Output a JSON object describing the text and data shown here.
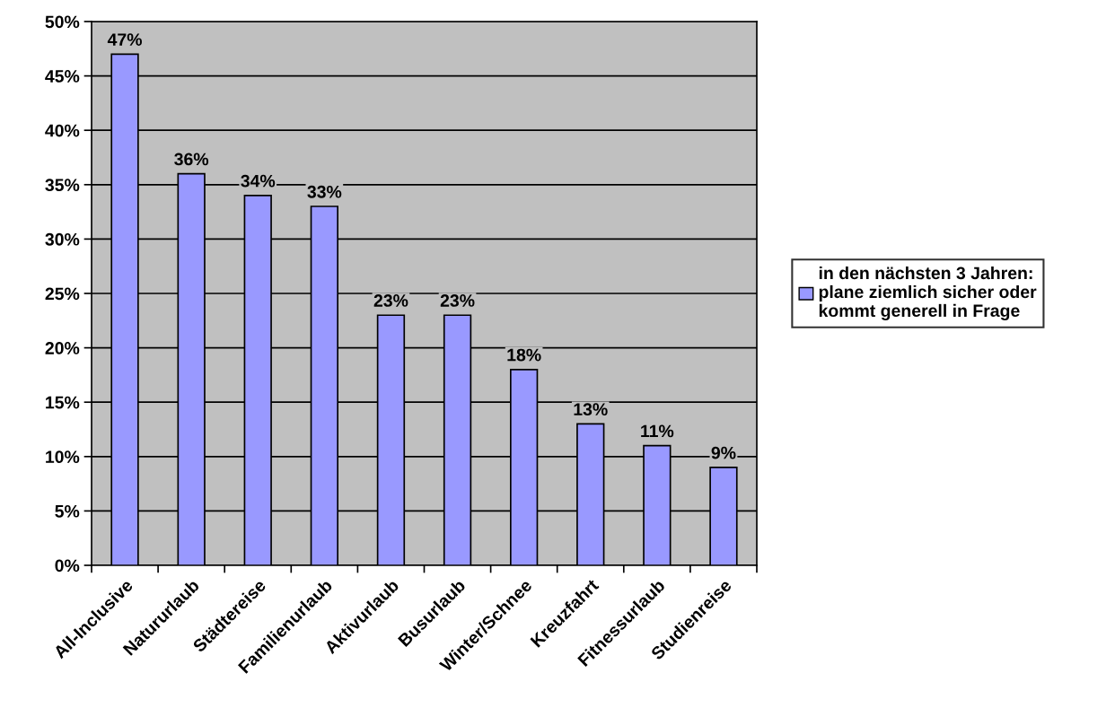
{
  "chart_data": {
    "type": "bar",
    "categories": [
      "All-Inclusive",
      "Natururlaub",
      "Städtereise",
      "Familienurlaub",
      "Aktivurlaub",
      "Busurlaub",
      "Winter/Schnee",
      "Kreuzfahrt",
      "Fitnessurlaub",
      "Studienreise"
    ],
    "series": [
      {
        "name": "in den nächsten 3 Jahren:\nplane ziemlich sicher oder\nkommt generell in Frage",
        "color": "#9999ff",
        "values": [
          47,
          36,
          34,
          33,
          23,
          23,
          18,
          13,
          11,
          9
        ],
        "value_labels": [
          "47%",
          "36%",
          "34%",
          "33%",
          "23%",
          "23%",
          "18%",
          "13%",
          "11%",
          "9%"
        ]
      }
    ],
    "ylim": [
      0,
      50
    ],
    "yticks": [
      {
        "value": 0,
        "label": "0%"
      },
      {
        "value": 5,
        "label": "5%"
      },
      {
        "value": 10,
        "label": "10%"
      },
      {
        "value": 15,
        "label": "15%"
      },
      {
        "value": 20,
        "label": "20%"
      },
      {
        "value": 25,
        "label": "25%"
      },
      {
        "value": 30,
        "label": "30%"
      },
      {
        "value": 35,
        "label": "35%"
      },
      {
        "value": 40,
        "label": "40%"
      },
      {
        "value": 45,
        "label": "45%"
      },
      {
        "value": 50,
        "label": "50%"
      }
    ],
    "grid": "y",
    "legend": "right"
  }
}
